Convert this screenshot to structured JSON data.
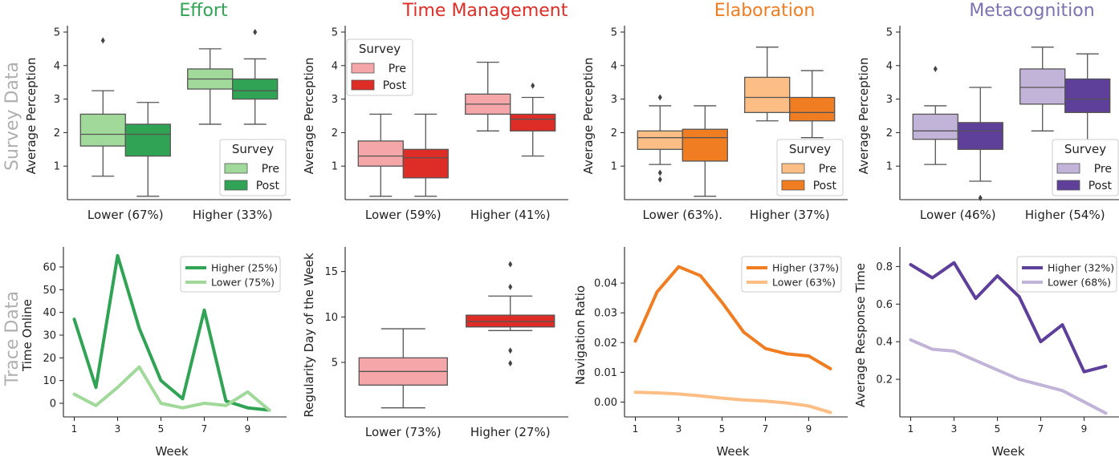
{
  "row_labels": [
    "Survey Data",
    "Trace Data"
  ],
  "colors": {
    "effort": {
      "pre": "#a1d99b",
      "post": "#31a354",
      "title": "#31a354"
    },
    "time": {
      "pre": "#f4a6a8",
      "post": "#de2d26",
      "title": "#de2d26"
    },
    "elab": {
      "pre": "#fdbe85",
      "post": "#f07d22",
      "title": "#f07d22"
    },
    "meta": {
      "pre": "#c2b4d8",
      "post": "#5e3f9a",
      "title": "#7b73b0"
    },
    "row_label": "#b0b0b0"
  },
  "chart_data": [
    {
      "id": "effort-survey",
      "type": "box",
      "title": "Effort",
      "ylabel": "Average Perception",
      "ylim": [
        0,
        5
      ],
      "yticks": [
        1,
        2,
        3,
        4,
        5
      ],
      "categories": [
        "Lower (67%)",
        "Higher (33%)"
      ],
      "legend": {
        "title": "Survey",
        "entries": [
          "Pre",
          "Post"
        ],
        "position": "lower-right"
      },
      "boxes": [
        {
          "category": "Lower (67%)",
          "series": "Pre",
          "whisker_low": 0.7,
          "q1": 1.6,
          "median": 1.95,
          "q3": 2.55,
          "whisker_high": 3.25,
          "outliers": [
            4.75
          ]
        },
        {
          "category": "Lower (67%)",
          "series": "Post",
          "whisker_low": 0.1,
          "q1": 1.3,
          "median": 1.95,
          "q3": 2.25,
          "whisker_high": 2.9,
          "outliers": []
        },
        {
          "category": "Higher (33%)",
          "series": "Pre",
          "whisker_low": 2.25,
          "q1": 3.3,
          "median": 3.6,
          "q3": 3.9,
          "whisker_high": 4.5,
          "outliers": []
        },
        {
          "category": "Higher (33%)",
          "series": "Post",
          "whisker_low": 2.25,
          "q1": 3.0,
          "median": 3.25,
          "q3": 3.6,
          "whisker_high": 4.2,
          "outliers": [
            5.0
          ]
        }
      ]
    },
    {
      "id": "time-survey",
      "type": "box",
      "title": "Time Management",
      "ylabel": "Average Perception",
      "ylim": [
        0,
        5
      ],
      "yticks": [
        1,
        2,
        3,
        4,
        5
      ],
      "categories": [
        "Lower (59%)",
        "Higher (41%)"
      ],
      "legend": {
        "title": "Survey",
        "entries": [
          "Pre",
          "Post"
        ],
        "position": "upper-left"
      },
      "boxes": [
        {
          "category": "Lower (59%)",
          "series": "Pre",
          "whisker_low": 0.1,
          "q1": 1.0,
          "median": 1.3,
          "q3": 1.75,
          "whisker_high": 2.55,
          "outliers": []
        },
        {
          "category": "Lower (59%)",
          "series": "Post",
          "whisker_low": 0.1,
          "q1": 0.65,
          "median": 1.25,
          "q3": 1.5,
          "whisker_high": 2.55,
          "outliers": []
        },
        {
          "category": "Higher (41%)",
          "series": "Pre",
          "whisker_low": 2.05,
          "q1": 2.55,
          "median": 2.85,
          "q3": 3.15,
          "whisker_high": 4.1,
          "outliers": []
        },
        {
          "category": "Higher (41%)",
          "series": "Post",
          "whisker_low": 1.3,
          "q1": 2.05,
          "median": 2.4,
          "q3": 2.55,
          "whisker_high": 3.05,
          "outliers": [
            3.4
          ]
        }
      ]
    },
    {
      "id": "elab-survey",
      "type": "box",
      "title": "Elaboration",
      "ylabel": "Average Perception",
      "ylim": [
        0,
        5
      ],
      "yticks": [
        1,
        2,
        3,
        4,
        5
      ],
      "categories": [
        "Lower (63%).",
        "Higher (37%)"
      ],
      "legend": {
        "title": "Survey",
        "entries": [
          "Pre",
          "Post"
        ],
        "position": "lower-right"
      },
      "boxes": [
        {
          "category": "Lower (63%).",
          "series": "Pre",
          "whisker_low": 1.05,
          "q1": 1.5,
          "median": 1.85,
          "q3": 2.05,
          "whisker_high": 2.8,
          "outliers": [
            0.6,
            0.8,
            3.05
          ]
        },
        {
          "category": "Lower (63%).",
          "series": "Post",
          "whisker_low": 0.1,
          "q1": 1.15,
          "median": 1.85,
          "q3": 2.1,
          "whisker_high": 2.8,
          "outliers": []
        },
        {
          "category": "Higher (37%)",
          "series": "Pre",
          "whisker_low": 2.35,
          "q1": 2.6,
          "median": 3.05,
          "q3": 3.65,
          "whisker_high": 4.55,
          "outliers": []
        },
        {
          "category": "Higher (37%)",
          "series": "Post",
          "whisker_low": 1.85,
          "q1": 2.35,
          "median": 2.6,
          "q3": 3.05,
          "whisker_high": 3.85,
          "outliers": []
        }
      ]
    },
    {
      "id": "meta-survey",
      "type": "box",
      "title": "Metacognition",
      "ylabel": "Average Perception",
      "ylim": [
        0,
        5
      ],
      "yticks": [
        1,
        2,
        3,
        4,
        5
      ],
      "categories": [
        "Lower (46%)",
        "Higher (54%)"
      ],
      "legend": {
        "title": "Survey",
        "entries": [
          "Pre",
          "Post"
        ],
        "position": "lower-right"
      },
      "boxes": [
        {
          "category": "Lower (46%)",
          "series": "Pre",
          "whisker_low": 1.05,
          "q1": 1.8,
          "median": 2.05,
          "q3": 2.55,
          "whisker_high": 2.8,
          "outliers": [
            3.9
          ]
        },
        {
          "category": "Lower (46%)",
          "series": "Post",
          "whisker_low": 0.55,
          "q1": 1.5,
          "median": 2.05,
          "q3": 2.3,
          "whisker_high": 3.35,
          "outliers": [
            0.05
          ]
        },
        {
          "category": "Higher (54%)",
          "series": "Pre",
          "whisker_low": 2.05,
          "q1": 2.85,
          "median": 3.35,
          "q3": 3.9,
          "whisker_high": 4.55,
          "outliers": []
        },
        {
          "category": "Higher (54%)",
          "series": "Post",
          "whisker_low": 1.5,
          "q1": 2.6,
          "median": 3.0,
          "q3": 3.6,
          "whisker_high": 4.35,
          "outliers": []
        }
      ]
    },
    {
      "id": "effort-trace",
      "type": "line",
      "xlabel": "Week",
      "ylabel": "Time Online",
      "x": [
        1,
        2,
        3,
        4,
        5,
        6,
        7,
        8,
        9,
        10
      ],
      "xticks": [
        1,
        3,
        5,
        7,
        9
      ],
      "yticks": [
        0,
        10,
        20,
        30,
        40,
        50,
        60
      ],
      "xlim": [
        0.5,
        10.5
      ],
      "ylim": [
        -6,
        66
      ],
      "legend_position": "upper-right",
      "series": [
        {
          "name": "Higher (25%)",
          "values": [
            37,
            7,
            65,
            33,
            10,
            2,
            41,
            1,
            -2,
            -3
          ]
        },
        {
          "name": "Lower (75%)",
          "values": [
            4,
            -1,
            7,
            16,
            0,
            -2,
            0,
            -1,
            5,
            -3
          ]
        }
      ]
    },
    {
      "id": "time-trace",
      "type": "box",
      "ylabel": "Regularity Day of the Week",
      "ylim": [
        -1,
        17
      ],
      "yticks": [
        5,
        10,
        15
      ],
      "categories": [
        "Lower (73%)",
        "Higher (27%)"
      ],
      "boxes": [
        {
          "category": "Lower (73%)",
          "whisker_low": 0,
          "q1": 2.5,
          "median": 4.0,
          "q3": 5.5,
          "whisker_high": 8.7,
          "outliers": []
        },
        {
          "category": "Higher (27%)",
          "whisker_low": 8.5,
          "q1": 8.9,
          "median": 9.5,
          "q3": 10.2,
          "whisker_high": 12.3,
          "outliers": [
            4.9,
            6.3,
            13.3,
            15.8
          ]
        }
      ]
    },
    {
      "id": "elab-trace",
      "type": "line",
      "xlabel": "Week",
      "ylabel": "Navigation Ratio",
      "x": [
        1,
        2,
        3,
        4,
        5,
        6,
        7,
        8,
        9,
        10
      ],
      "xticks": [
        1,
        3,
        5,
        7,
        9
      ],
      "yticks": [
        0.0,
        0.01,
        0.02,
        0.03,
        0.04
      ],
      "xlim": [
        0.5,
        10.5
      ],
      "ylim": [
        -0.005,
        0.05
      ],
      "legend_position": "upper-right",
      "series": [
        {
          "name": "Higher (37%)",
          "values": [
            0.0205,
            0.037,
            0.0455,
            0.0425,
            0.0335,
            0.0235,
            0.018,
            0.0162,
            0.0155,
            0.0112
          ]
        },
        {
          "name": "Lower (63%)",
          "values": [
            0.0033,
            0.0031,
            0.0027,
            0.0021,
            0.0013,
            0.0007,
            0.0003,
            -0.0003,
            -0.0013,
            -0.0035
          ]
        }
      ]
    },
    {
      "id": "meta-trace",
      "type": "line",
      "xlabel": "Week",
      "ylabel": "Average Response Time",
      "x": [
        1,
        2,
        3,
        4,
        5,
        6,
        7,
        8,
        9,
        10
      ],
      "xticks": [
        1,
        3,
        5,
        7,
        9
      ],
      "yticks": [
        0.2,
        0.4,
        0.6,
        0.8
      ],
      "xlim": [
        0.5,
        10.5
      ],
      "ylim": [
        0,
        0.87
      ],
      "legend_position": "upper-right",
      "series": [
        {
          "name": "Higher (32%)",
          "values": [
            0.81,
            0.74,
            0.82,
            0.63,
            0.75,
            0.64,
            0.4,
            0.49,
            0.24,
            0.27
          ]
        },
        {
          "name": "Lower (68%)",
          "values": [
            0.41,
            0.36,
            0.35,
            0.3,
            0.25,
            0.2,
            0.17,
            0.14,
            0.08,
            0.02
          ]
        }
      ]
    }
  ]
}
